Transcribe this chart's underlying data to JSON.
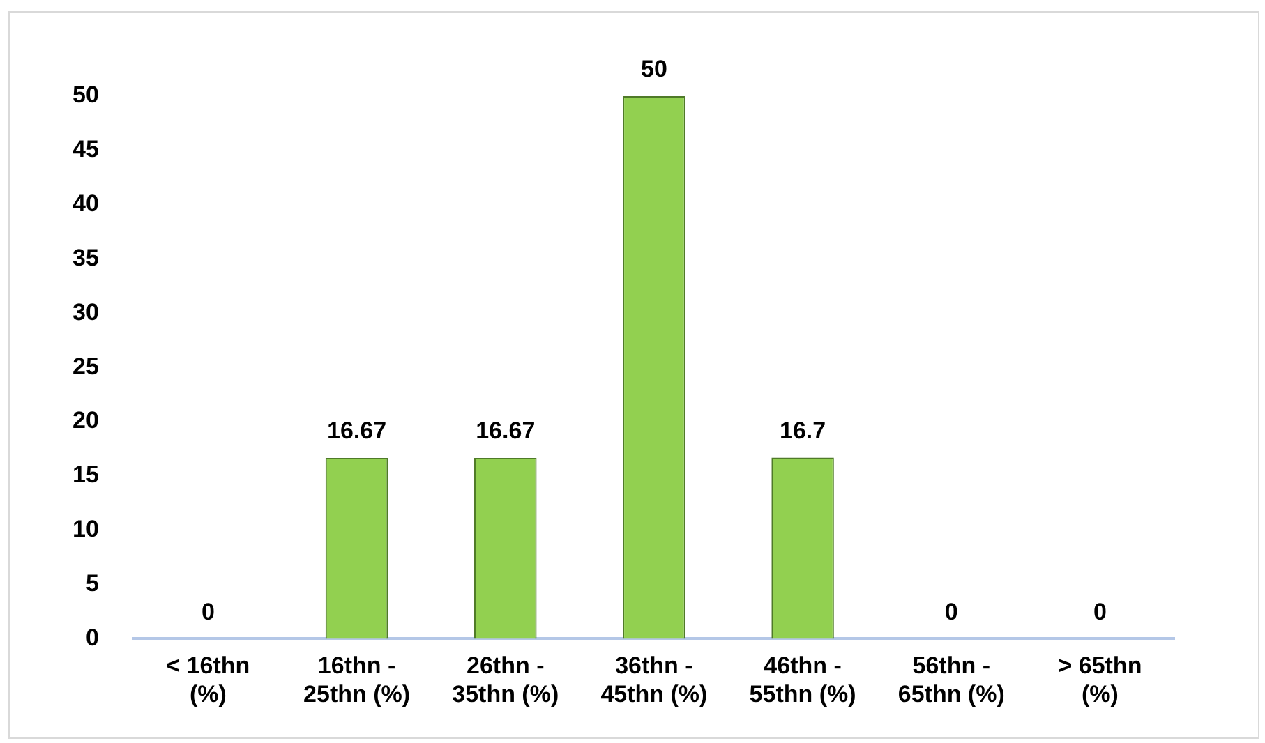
{
  "chart_data": {
    "type": "bar",
    "categories": [
      "< 16thn (%)",
      "16thn - 25thn (%)",
      "26thn - 35thn (%)",
      "36thn - 45thn (%)",
      "46thn - 55thn (%)",
      "56thn - 65thn (%)",
      "> 65thn (%)"
    ],
    "values": [
      0,
      16.67,
      16.67,
      50,
      16.7,
      0,
      0
    ],
    "color": "#92d050",
    "ylim": [
      0,
      50
    ],
    "yticks": [
      0,
      5,
      10,
      15,
      20,
      25,
      30,
      35,
      40,
      45,
      50
    ],
    "grid": false,
    "legend": false,
    "data_labels": true
  }
}
